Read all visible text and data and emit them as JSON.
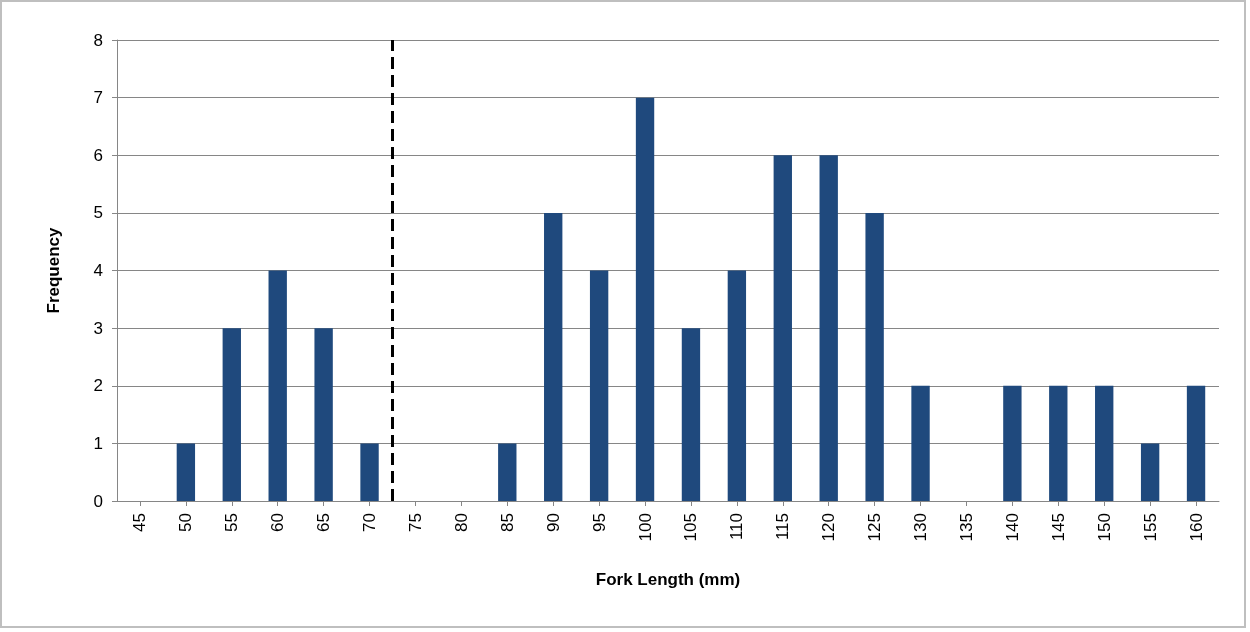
{
  "chart_data": {
    "type": "bar",
    "xlabel": "Fork Length (mm)",
    "ylabel": "Frequency",
    "x": [
      45,
      50,
      55,
      60,
      65,
      70,
      75,
      80,
      85,
      90,
      95,
      100,
      105,
      110,
      115,
      120,
      125,
      130,
      135,
      140,
      145,
      150,
      155,
      160
    ],
    "values": [
      0,
      1,
      3,
      4,
      3,
      1,
      0,
      0,
      1,
      5,
      4,
      7,
      3,
      4,
      6,
      6,
      5,
      2,
      0,
      2,
      2,
      2,
      1,
      2
    ],
    "color": "#1f497d",
    "xlim": [
      42.5,
      162.5
    ],
    "xticks": [
      45,
      50,
      55,
      60,
      65,
      70,
      75,
      80,
      85,
      90,
      95,
      100,
      105,
      110,
      115,
      120,
      125,
      130,
      135,
      140,
      145,
      150,
      155,
      160
    ],
    "ylim": [
      0,
      8
    ],
    "yticks": [
      0,
      1,
      2,
      3,
      4,
      5,
      6,
      7,
      8
    ],
    "grid": "y",
    "ref_lines": [
      {
        "axis": "x",
        "value": 72.5,
        "color": "#000000",
        "line_style": "dashed"
      }
    ]
  }
}
